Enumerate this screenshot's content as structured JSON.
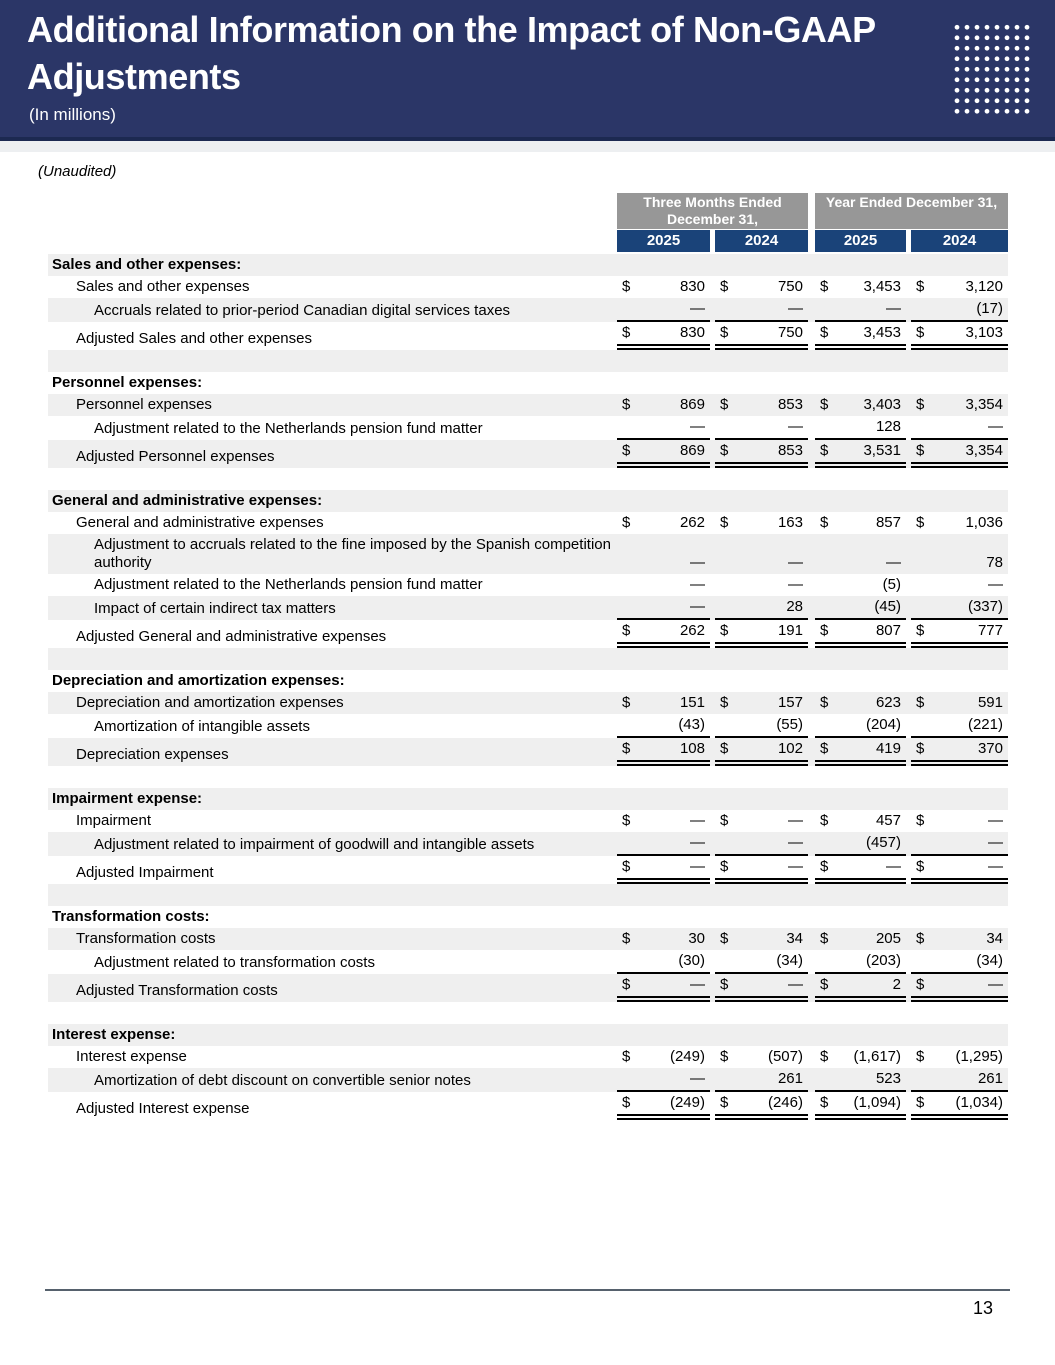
{
  "header": {
    "title": "Additional Information on the Impact of Non-GAAP Adjustments",
    "subtitle": "(In millions)"
  },
  "unaudited_note": "(Unaudited)",
  "table": {
    "currency_symbol": "$",
    "col_groups": [
      {
        "label": "Three Months Ended December 31,",
        "years": [
          "2025",
          "2024"
        ]
      },
      {
        "label": "Year Ended December 31,",
        "years": [
          "2025",
          "2024"
        ]
      }
    ],
    "rows": [
      {
        "type": "section",
        "label": "Sales and other expenses:"
      },
      {
        "type": "data",
        "label": "Sales and other expenses",
        "values": [
          "830",
          "750",
          "3,453",
          "3,120"
        ]
      },
      {
        "type": "adjustment",
        "label": "Accruals related to prior-period Canadian digital services taxes",
        "values": [
          "—",
          "—",
          "—",
          "(17)"
        ],
        "rule": "single"
      },
      {
        "type": "total",
        "label": "Adjusted Sales and other expenses",
        "values": [
          "830",
          "750",
          "3,453",
          "3,103"
        ]
      },
      {
        "type": "spacer"
      },
      {
        "type": "section",
        "label": "Personnel expenses:"
      },
      {
        "type": "data",
        "label": "Personnel expenses",
        "values": [
          "869",
          "853",
          "3,403",
          "3,354"
        ]
      },
      {
        "type": "adjustment",
        "label": "Adjustment related to the Netherlands pension fund matter",
        "values": [
          "—",
          "—",
          "128",
          "—"
        ],
        "rule": "single"
      },
      {
        "type": "total",
        "label": "Adjusted Personnel expenses",
        "values": [
          "869",
          "853",
          "3,531",
          "3,354"
        ]
      },
      {
        "type": "spacer"
      },
      {
        "type": "section",
        "label": "General and administrative expenses:"
      },
      {
        "type": "data",
        "label": "General and administrative expenses",
        "values": [
          "262",
          "163",
          "857",
          "1,036"
        ]
      },
      {
        "type": "adjustment",
        "label": "Adjustment to accruals related to the fine imposed by the Spanish competition authority",
        "values": [
          "—",
          "—",
          "—",
          "78"
        ]
      },
      {
        "type": "adjustment",
        "label": "Adjustment related to the Netherlands pension fund matter",
        "values": [
          "—",
          "—",
          "(5)",
          "—"
        ]
      },
      {
        "type": "adjustment",
        "label": "Impact of certain indirect tax matters",
        "values": [
          "—",
          "28",
          "(45)",
          "(337)"
        ],
        "rule": "single"
      },
      {
        "type": "total",
        "label": "Adjusted General and administrative expenses",
        "values": [
          "262",
          "191",
          "807",
          "777"
        ]
      },
      {
        "type": "spacer"
      },
      {
        "type": "section",
        "label": "Depreciation and amortization expenses:"
      },
      {
        "type": "data",
        "label": "Depreciation and amortization expenses",
        "values": [
          "151",
          "157",
          "623",
          "591"
        ]
      },
      {
        "type": "adjustment",
        "label": "Amortization of intangible assets",
        "values": [
          "(43)",
          "(55)",
          "(204)",
          "(221)"
        ],
        "rule": "single"
      },
      {
        "type": "total",
        "label": "Depreciation expenses",
        "values": [
          "108",
          "102",
          "419",
          "370"
        ]
      },
      {
        "type": "spacer"
      },
      {
        "type": "section",
        "label": "Impairment expense:"
      },
      {
        "type": "data",
        "label": "Impairment",
        "values": [
          "—",
          "—",
          "457",
          "—"
        ]
      },
      {
        "type": "adjustment",
        "label": "Adjustment related to impairment of goodwill and intangible assets",
        "values": [
          "—",
          "—",
          "(457)",
          "—"
        ],
        "rule": "single"
      },
      {
        "type": "total",
        "label": "Adjusted Impairment",
        "values": [
          "—",
          "—",
          "—",
          "—"
        ]
      },
      {
        "type": "spacer"
      },
      {
        "type": "section",
        "label": "Transformation costs:"
      },
      {
        "type": "data",
        "label": "Transformation costs",
        "values": [
          "30",
          "34",
          "205",
          "34"
        ]
      },
      {
        "type": "adjustment",
        "label": "Adjustment related to transformation costs",
        "values": [
          "(30)",
          "(34)",
          "(203)",
          "(34)"
        ],
        "rule": "single"
      },
      {
        "type": "total",
        "label": "Adjusted Transformation costs",
        "values": [
          "—",
          "—",
          "2",
          "—"
        ]
      },
      {
        "type": "spacer"
      },
      {
        "type": "section",
        "label": "Interest expense:"
      },
      {
        "type": "data",
        "label": "Interest expense",
        "values": [
          "(249)",
          "(507)",
          "(1,617)",
          "(1,295)"
        ]
      },
      {
        "type": "adjustment",
        "label": "Amortization of debt discount on convertible senior notes",
        "values": [
          "—",
          "261",
          "523",
          "261"
        ],
        "rule": "single"
      },
      {
        "type": "total",
        "label": "Adjusted Interest expense",
        "values": [
          "(249)",
          "(246)",
          "(1,094)",
          "(1,034)"
        ]
      }
    ]
  },
  "footer": {
    "page_number": "13"
  },
  "colors": {
    "banner_bg": "#2b3667",
    "banner_rule": "#1c2951",
    "band_gray": "#979797",
    "band_blue": "#1a4379",
    "row_stripe": "#efefef",
    "footer_line": "#56616d",
    "text": "#000000"
  }
}
